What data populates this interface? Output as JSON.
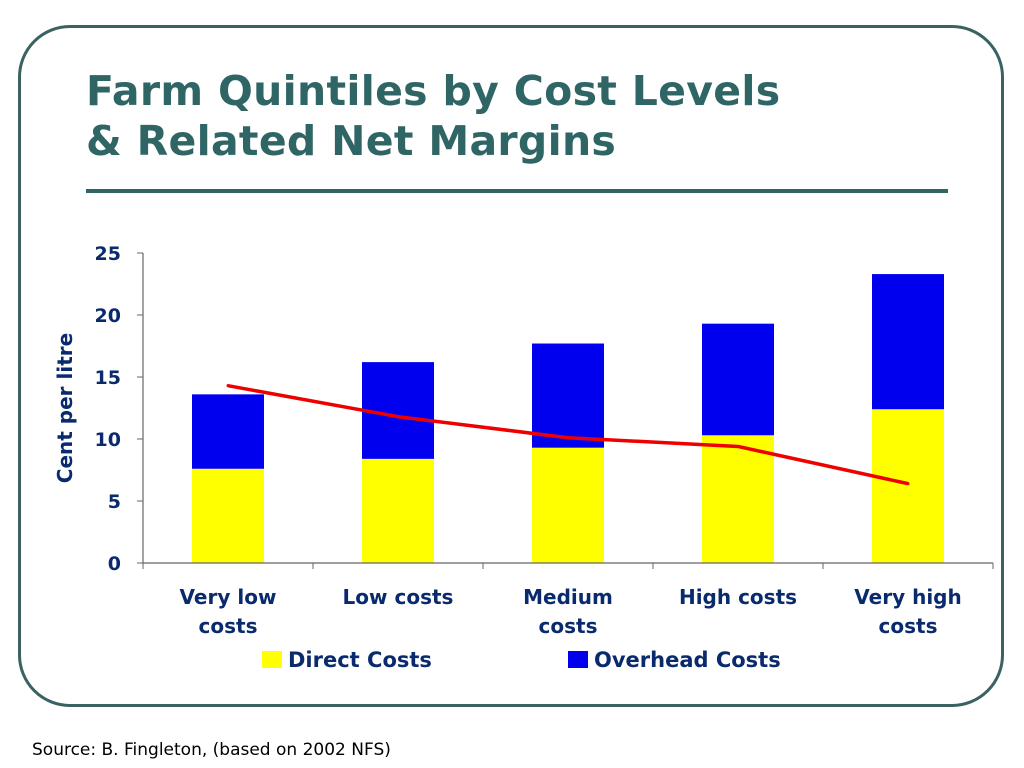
{
  "slide": {
    "title_line1": "Farm Quintiles by Cost Levels",
    "title_line2": "& Related Net Margins",
    "source": "Source: B. Fingleton, (based on 2002 NFS)"
  },
  "chart_data": {
    "type": "bar",
    "stacked": true,
    "categories": [
      [
        "Very low",
        "costs"
      ],
      [
        "Low costs"
      ],
      [
        "Medium",
        "costs"
      ],
      [
        "High costs"
      ],
      [
        "Very high",
        "costs"
      ]
    ],
    "series": [
      {
        "name": "Direct Costs",
        "color": "#ffff00",
        "values": [
          7.6,
          8.4,
          9.3,
          10.3,
          12.4
        ]
      },
      {
        "name": "Overhead Costs",
        "color": "#0000ee",
        "values": [
          6.0,
          7.8,
          8.4,
          9.0,
          10.9
        ]
      }
    ],
    "line": {
      "color": "#ee0000",
      "values": [
        14.3,
        11.8,
        10.1,
        9.4,
        6.4
      ]
    },
    "ylabel": "Cent per litre",
    "ylim": [
      0,
      25
    ],
    "yticks": [
      0,
      5,
      10,
      15,
      20,
      25
    ],
    "legend_position": "bottom",
    "grid": false,
    "colors": {
      "axis": "#666666",
      "label": "#0a2a6e",
      "title": "#2f6565"
    }
  }
}
